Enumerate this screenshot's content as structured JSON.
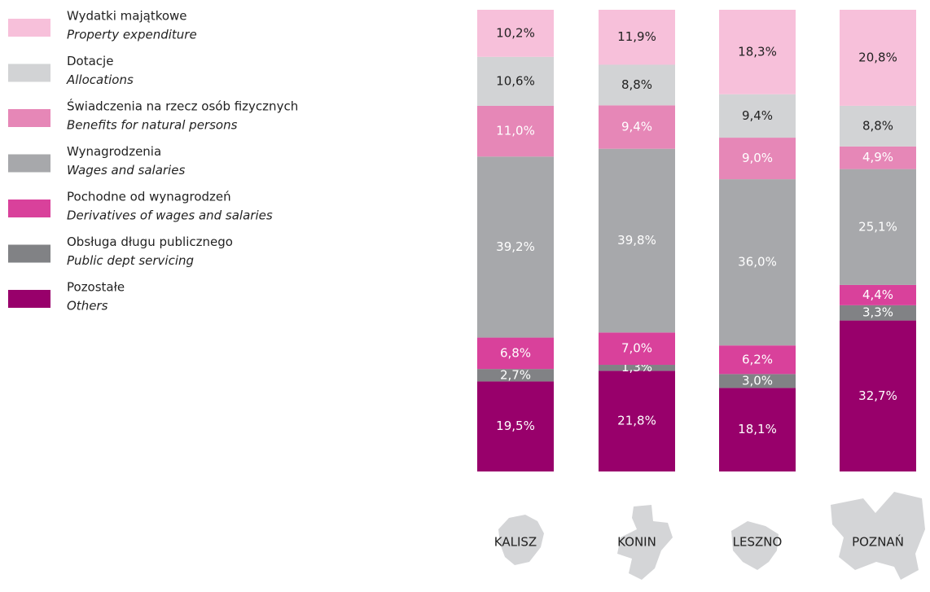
{
  "chart_data": {
    "type": "stacked_bar_percent",
    "categories": [
      "KALISZ",
      "KONIN",
      "LESZNO",
      "POZNAŃ"
    ],
    "ylim": [
      0,
      100
    ],
    "series": [
      {
        "name": "Wydatki majątkowe",
        "name_en": "Property expenditure",
        "color": "#f7c0da",
        "values": [
          10.2,
          11.9,
          18.3,
          20.8
        ],
        "value_labels": [
          "10,2%",
          "11,9%",
          "18,3%",
          "20,8%"
        ]
      },
      {
        "name": "Dotacje",
        "name_en": "Allocations",
        "color": "#d2d3d5",
        "values": [
          10.6,
          8.8,
          9.4,
          8.8
        ],
        "value_labels": [
          "10,6%",
          "8,8%",
          "9,4%",
          "8,8%"
        ]
      },
      {
        "name": "Świadczenia na rzecz osób fizycznych",
        "name_en": "Benefits for natural persons",
        "color": "#e687b7",
        "values": [
          11.0,
          9.4,
          9.0,
          4.9
        ],
        "value_labels": [
          "11,0%",
          "9,4%",
          "9,0%",
          "4,9%"
        ]
      },
      {
        "name": "Wynagrodzenia",
        "name_en": "Wages and salaries",
        "color": "#a7a8ab",
        "values": [
          39.2,
          39.8,
          36.0,
          25.1
        ],
        "value_labels": [
          "39,2%",
          "39,8%",
          "36,0%",
          "25,1%"
        ]
      },
      {
        "name": "Pochodne od wynagrodzeń",
        "name_en": "Derivatives of wages and salaries",
        "color": "#d9419b",
        "values": [
          6.8,
          7.0,
          6.2,
          4.4
        ],
        "value_labels": [
          "6,8%",
          "7,0%",
          "6,2%",
          "4,4%"
        ]
      },
      {
        "name": "Obsługa długu publicznego",
        "name_en": "Public dept servicing",
        "color": "#818285",
        "values": [
          2.7,
          1.3,
          3.0,
          3.3
        ],
        "value_labels": [
          "2,7%",
          "1,3%",
          "3,0%",
          "3,3%"
        ]
      },
      {
        "name": "Pozostałe",
        "name_en": "Others",
        "color": "#98006b",
        "values": [
          19.5,
          21.8,
          18.1,
          32.7
        ],
        "value_labels": [
          "19,5%",
          "21,8%",
          "18,1%",
          "32,7%"
        ]
      }
    ]
  }
}
